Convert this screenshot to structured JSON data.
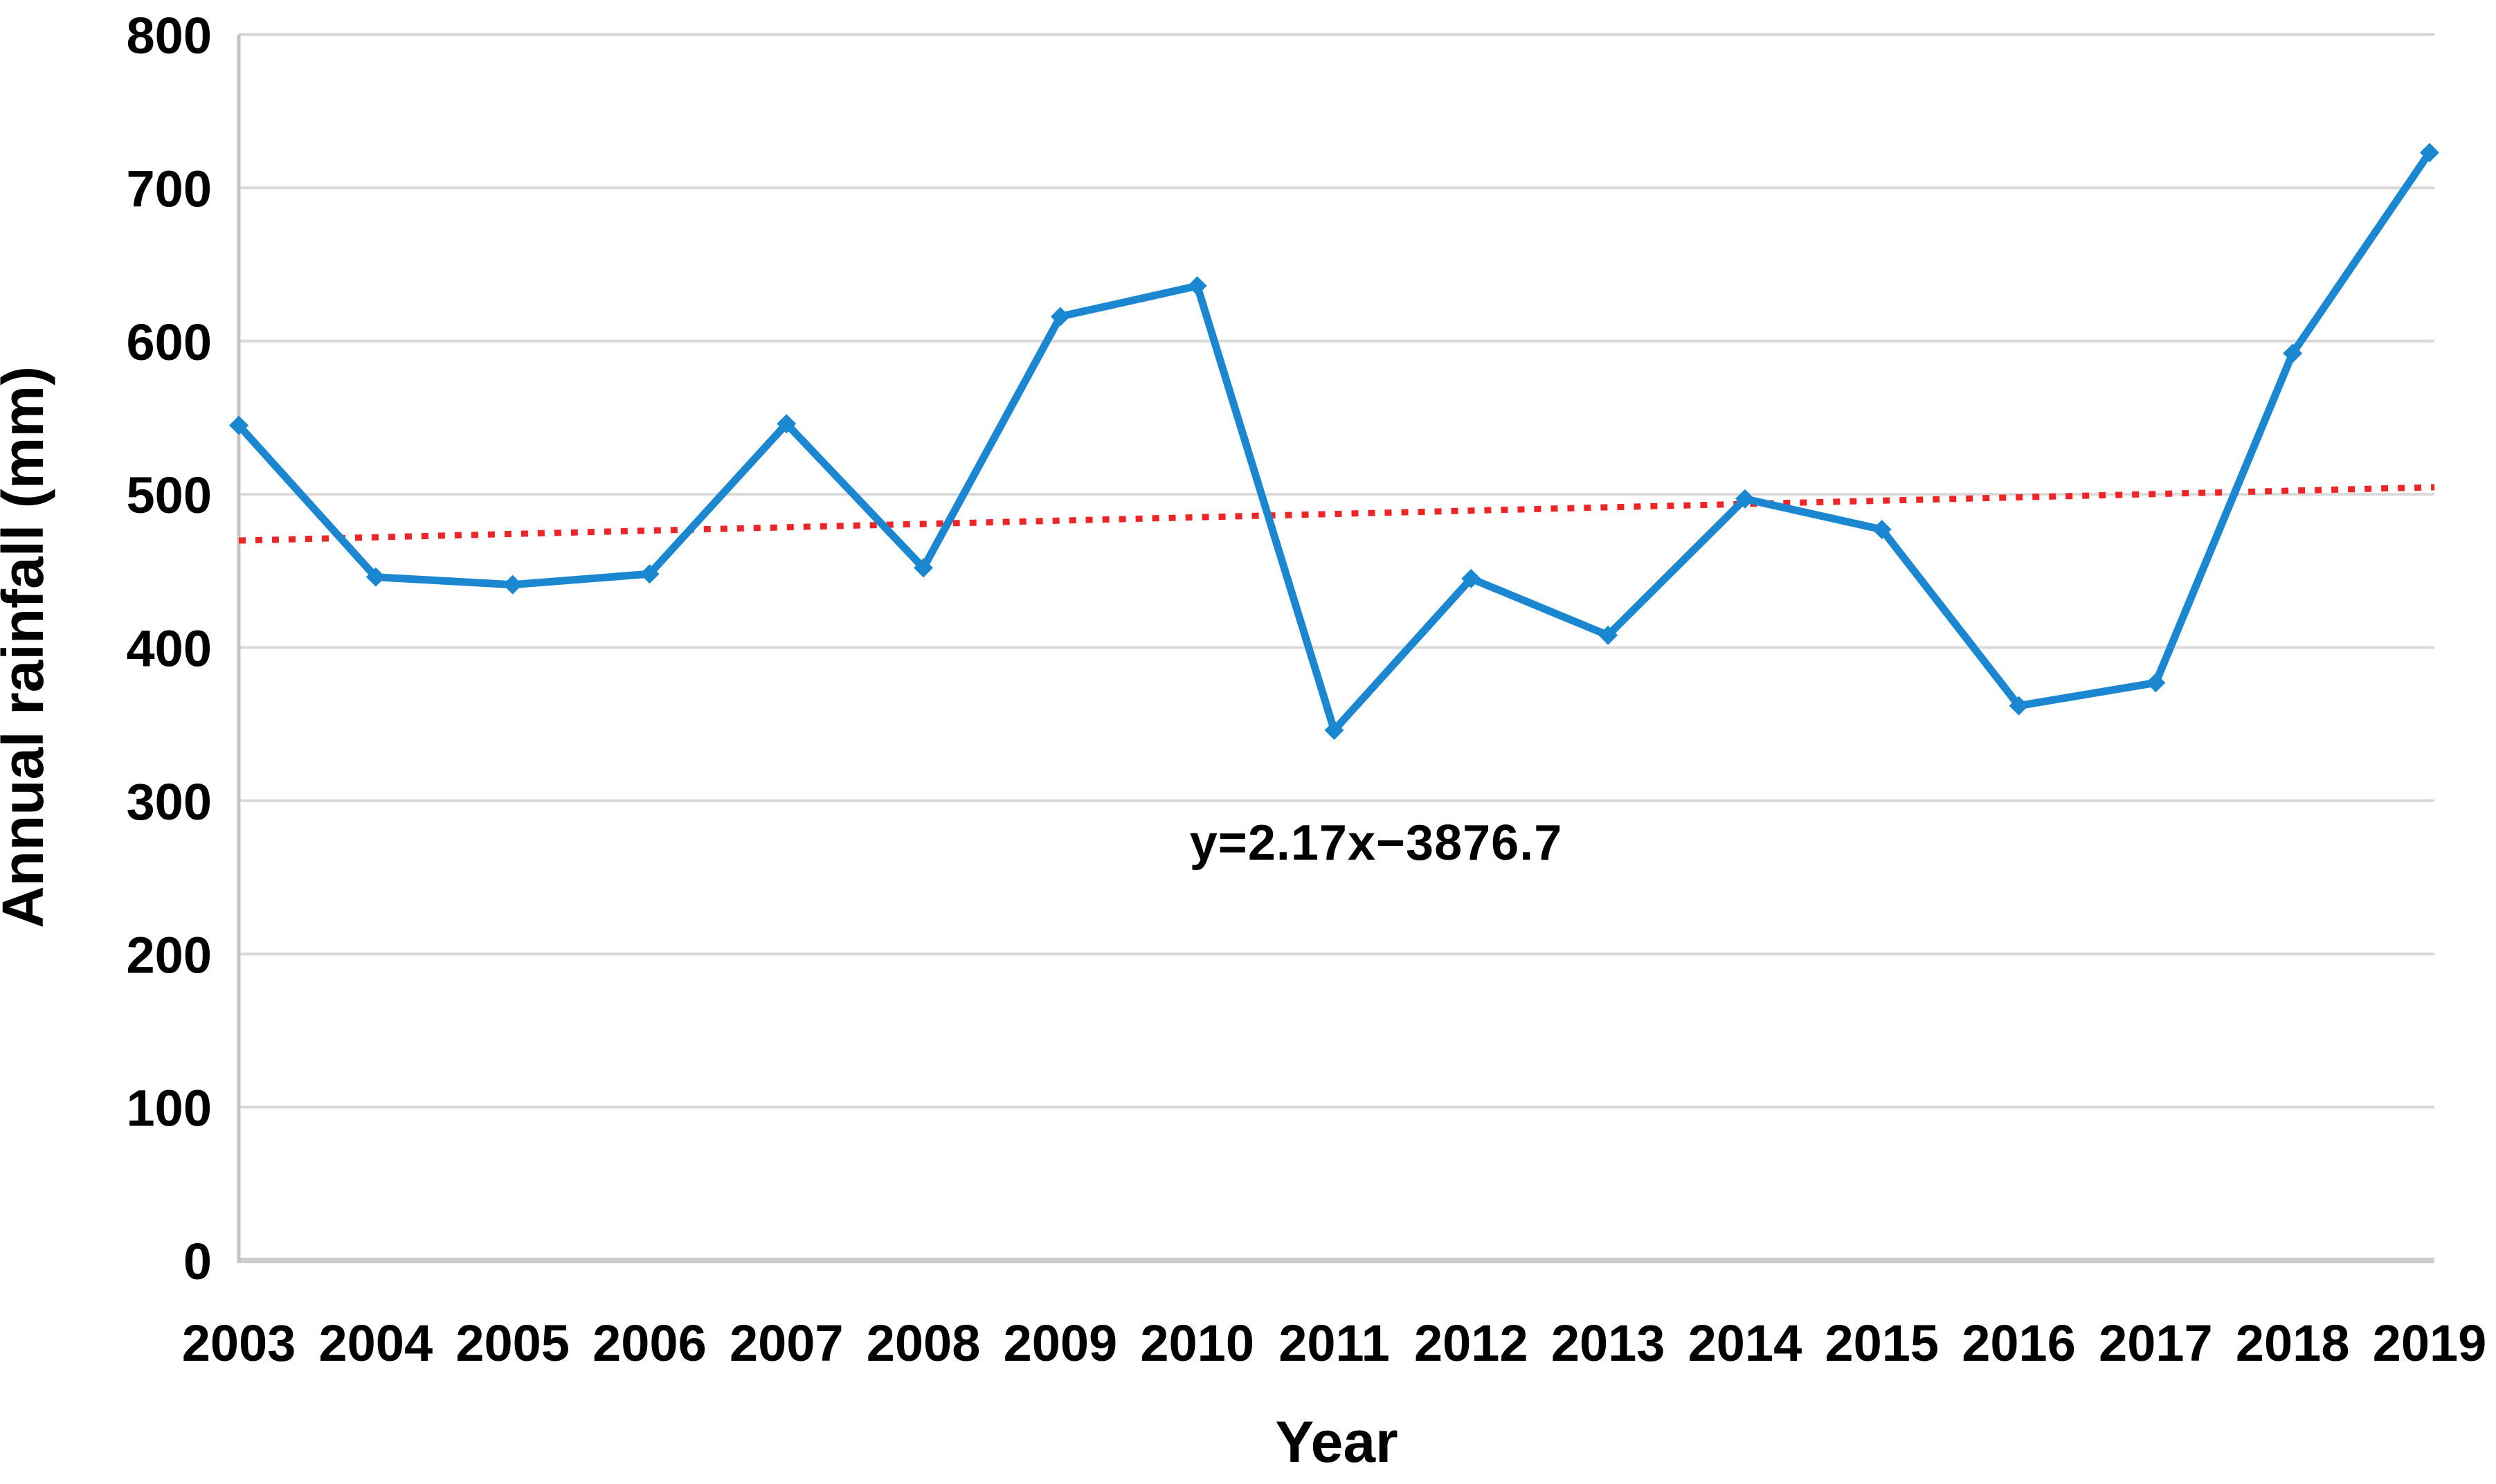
{
  "chart_data": {
    "type": "line",
    "title": "",
    "xlabel": "Year",
    "ylabel": "Annual rainfall (mm)",
    "x": [
      2003,
      2004,
      2005,
      2006,
      2007,
      2008,
      2009,
      2010,
      2011,
      2012,
      2013,
      2014,
      2015,
      2016,
      2017,
      2018,
      2019
    ],
    "series": [
      {
        "name": "Annual rainfall",
        "values": [
          545,
          446,
          441,
          448,
          546,
          452,
          616,
          636,
          346,
          445,
          408,
          497,
          477,
          362,
          377,
          592,
          723
        ]
      }
    ],
    "trendline": {
      "equation_label": "y=2.17x−3876.7",
      "slope": 2.17,
      "intercept": -3876.7,
      "style": "dotted"
    },
    "ylim": [
      0,
      800
    ],
    "y_ticks": [
      0,
      100,
      200,
      300,
      400,
      500,
      600,
      700,
      800
    ],
    "grid": "horizontal-only",
    "legend": "none",
    "colors": {
      "series_line": "#1b87d1",
      "trend_line": "#ee2528",
      "gridline": "#d9d9d9",
      "axis_line": "#c4c4c4",
      "baseline": "#cdcdcd",
      "text": "#000000",
      "background": "#ffffff"
    }
  }
}
